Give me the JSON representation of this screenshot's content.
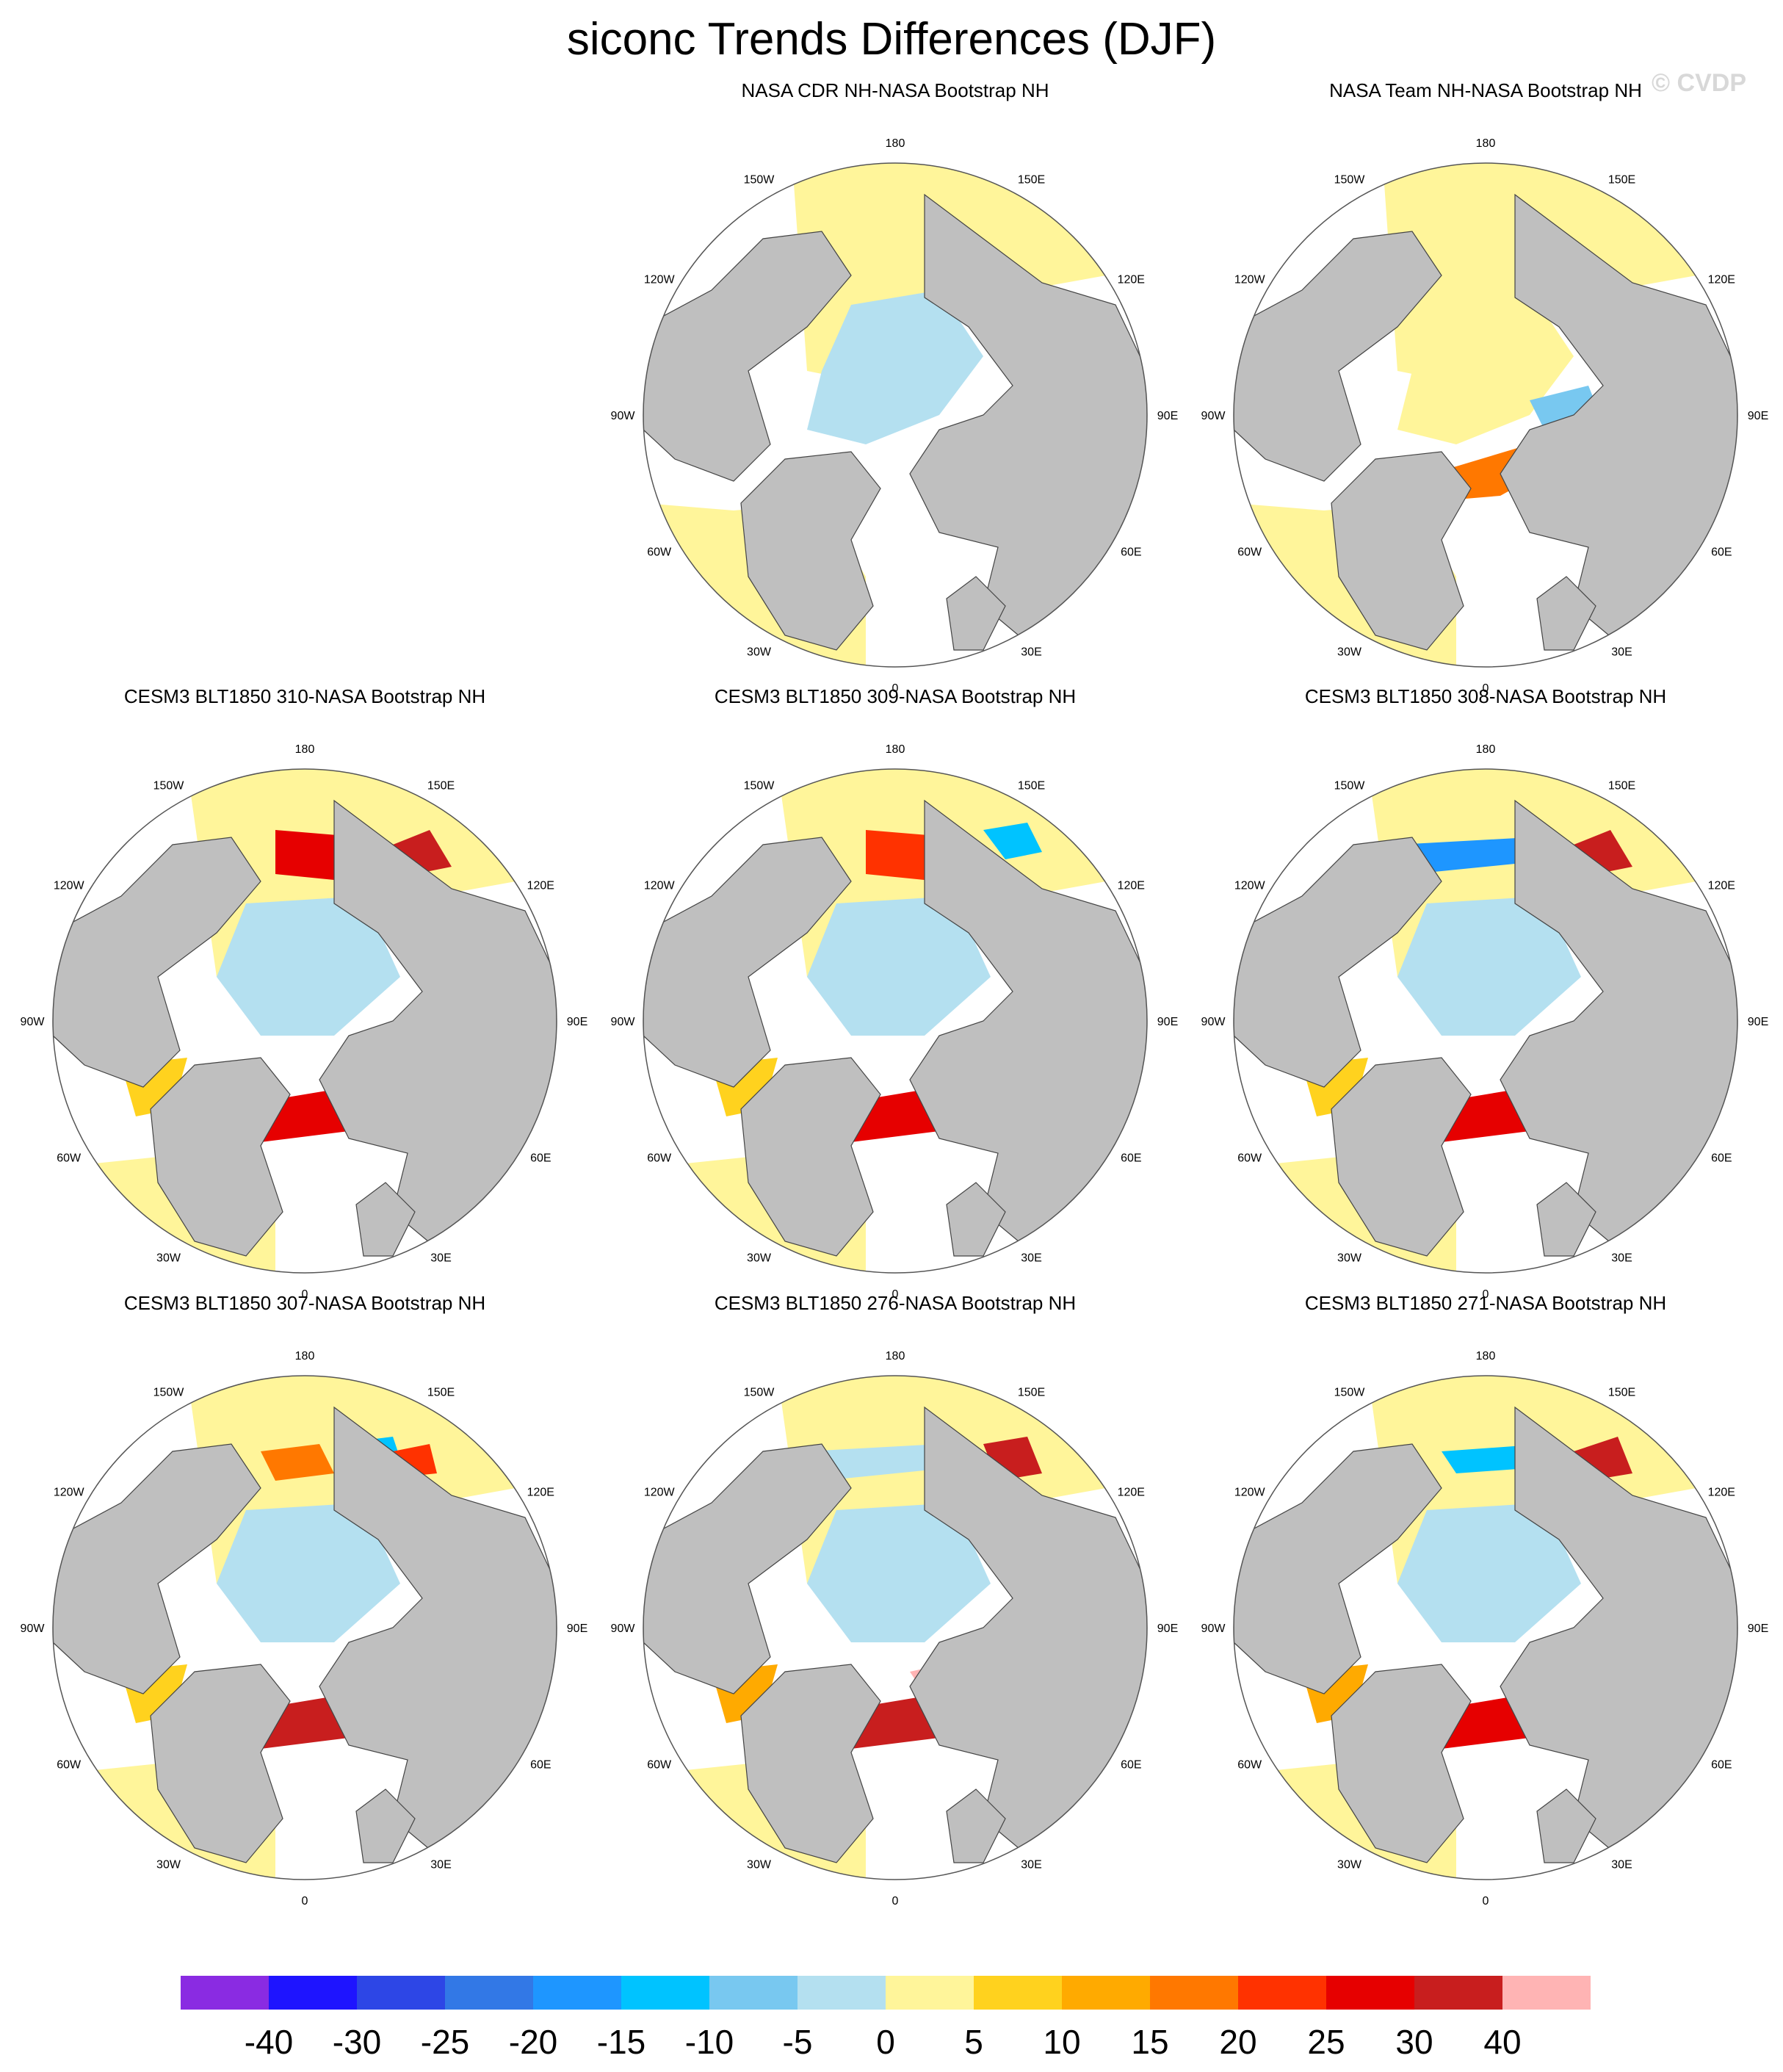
{
  "title": "siconc Trends Differences (DJF)",
  "watermark": "© CVDP",
  "lon_labels": [
    "180",
    "150E",
    "120E",
    "90E",
    "60E",
    "30E",
    "0",
    "30W",
    "60W",
    "90W",
    "120W",
    "150W"
  ],
  "panels": [
    {
      "title": "NASA CDR NH-NASA Bootstrap NH"
    },
    {
      "title": "NASA Team NH-NASA Bootstrap NH"
    },
    {
      "title": "CESM3 BLT1850 310-NASA Bootstrap NH"
    },
    {
      "title": "CESM3 BLT1850 309-NASA Bootstrap NH"
    },
    {
      "title": "CESM3 BLT1850 308-NASA Bootstrap NH"
    },
    {
      "title": "CESM3 BLT1850 307-NASA Bootstrap NH"
    },
    {
      "title": "CESM3 BLT1850 276-NASA Bootstrap NH"
    },
    {
      "title": "CESM3 BLT1850 271-NASA Bootstrap NH"
    }
  ],
  "chart_data": {
    "type": "heatmap",
    "projection": "north polar stereographic",
    "variable": "siconc",
    "season": "DJF",
    "colorbar": {
      "levels": [
        "-40",
        "-30",
        "-25",
        "-20",
        "-15",
        "-10",
        "-5",
        "0",
        "5",
        "10",
        "15",
        "20",
        "25",
        "30",
        "40"
      ],
      "colors": [
        "#8a2be2",
        "#1e14ff",
        "#2d46e6",
        "#3278e6",
        "#1e96ff",
        "#00c3ff",
        "#78c8f0",
        "#b4e0f0",
        "#fff59a",
        "#ffd21e",
        "#ffaa00",
        "#ff7800",
        "#ff3200",
        "#e60000",
        "#c81e1e",
        "#ffb4b4"
      ]
    },
    "land_color": "#bfbfbf",
    "missing_color": "#ffffff"
  }
}
